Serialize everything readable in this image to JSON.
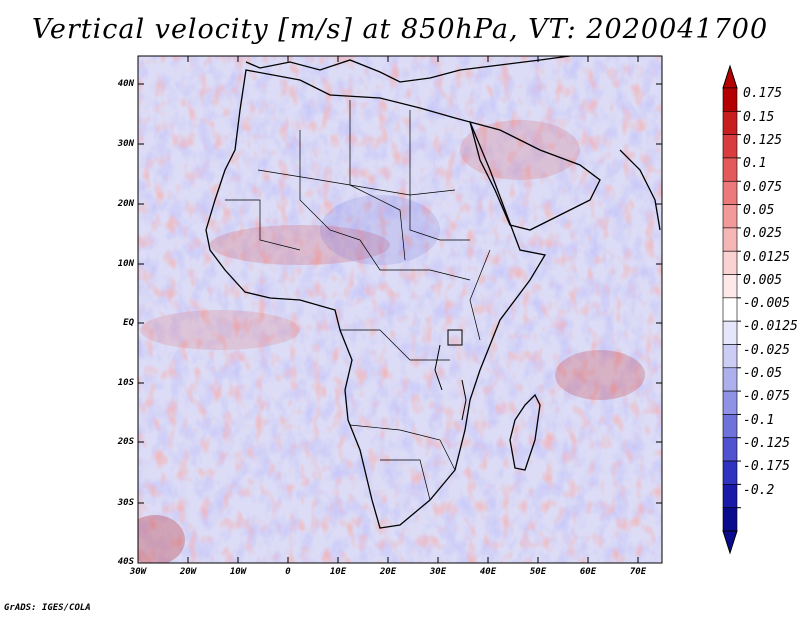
{
  "title": "Vertical velocity [m/s] at 850hPa, VT: 2020041700",
  "credit": "GrADS: IGES/COLA",
  "map": {
    "lat_labels": [
      "40N",
      "30N",
      "20N",
      "10N",
      "EQ",
      "10S",
      "20S",
      "30S",
      "40S"
    ],
    "lon_labels": [
      "30W",
      "20W",
      "10W",
      "0",
      "10E",
      "20E",
      "30E",
      "40E",
      "50E",
      "60E",
      "70E"
    ],
    "lat_range": [
      -40,
      45
    ],
    "lon_range": [
      -30,
      75
    ]
  },
  "colorbar": {
    "labels": [
      "0.175",
      "0.15",
      "0.125",
      "0.1",
      "0.075",
      "0.05",
      "0.025",
      "0.0125",
      "0.005",
      "-0.005",
      "-0.0125",
      "-0.025",
      "-0.05",
      "-0.075",
      "-0.1",
      "-0.125",
      "-0.175",
      "-0.2"
    ],
    "colors": [
      "#b40000",
      "#c81e1e",
      "#d93c3c",
      "#e45a5a",
      "#ec7a7a",
      "#f29a9a",
      "#f6b6b6",
      "#fad2d2",
      "#fde9e9",
      "#ffffff",
      "#e6e6fa",
      "#cccdf5",
      "#aeb0ee",
      "#9092e6",
      "#7072dc",
      "#5052d0",
      "#3032c0",
      "#1a1aa8",
      "#0a0a8c"
    ]
  }
}
